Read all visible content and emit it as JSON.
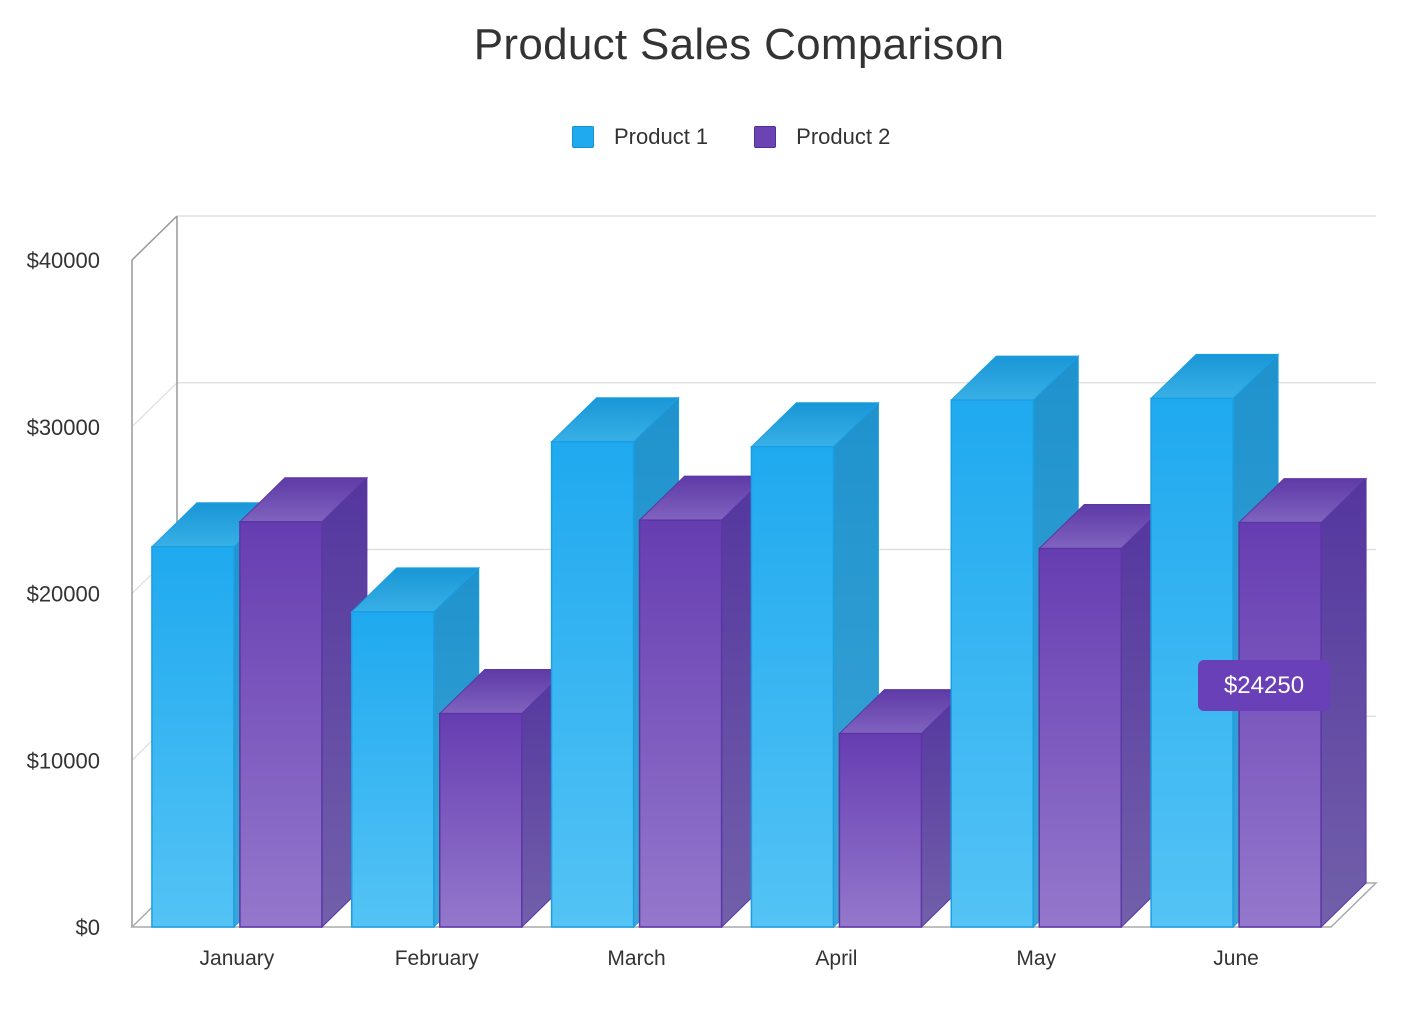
{
  "chart_data": {
    "type": "bar",
    "title": "Product Sales Comparison",
    "categories": [
      "January",
      "February",
      "March",
      "April",
      "May",
      "June"
    ],
    "series": [
      {
        "name": "Product 1",
        "values": [
          22800,
          18900,
          29100,
          28800,
          31600,
          31700
        ],
        "color": "#1fa9ef"
      },
      {
        "name": "Product 2",
        "values": [
          24300,
          12800,
          24400,
          11600,
          22700,
          24250
        ],
        "color": "#6a44b3"
      }
    ],
    "yticks": [
      "$0",
      "$10000",
      "$20000",
      "$30000",
      "$40000"
    ],
    "ylim": [
      0,
      40000
    ],
    "grid": true,
    "legend_position": "top",
    "tooltip": {
      "text": "$24250",
      "series": "Product 2",
      "category": "June",
      "color": "#6a40b8"
    }
  }
}
